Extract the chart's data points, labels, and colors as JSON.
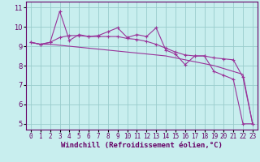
{
  "xlabel": "Windchill (Refroidissement éolien,°C)",
  "bg_color": "#c8eeee",
  "line_color": "#993399",
  "grid_color": "#99cccc",
  "axis_color": "#660066",
  "text_color": "#660066",
  "xlim": [
    -0.5,
    23.5
  ],
  "ylim": [
    4.7,
    11.3
  ],
  "yticks": [
    5,
    6,
    7,
    8,
    9,
    10,
    11
  ],
  "xticks": [
    0,
    1,
    2,
    3,
    4,
    5,
    6,
    7,
    8,
    9,
    10,
    11,
    12,
    13,
    14,
    15,
    16,
    17,
    18,
    19,
    20,
    21,
    22,
    23
  ],
  "line1_x": [
    0,
    1,
    2,
    3,
    4,
    5,
    6,
    7,
    8,
    9,
    10,
    11,
    12,
    13,
    14,
    15,
    16,
    17,
    18,
    19,
    20,
    21,
    22,
    23
  ],
  "line1_y": [
    9.2,
    9.1,
    9.2,
    10.8,
    9.3,
    9.6,
    9.5,
    9.55,
    9.75,
    9.95,
    9.45,
    9.6,
    9.5,
    9.95,
    8.8,
    8.6,
    8.05,
    8.5,
    8.5,
    7.7,
    7.5,
    7.3,
    5.0,
    5.0
  ],
  "line2_x": [
    0,
    1,
    2,
    3,
    4,
    5,
    6,
    7,
    8,
    9,
    10,
    11,
    12,
    13,
    14,
    15,
    16,
    17,
    18,
    19,
    20,
    21,
    22,
    23
  ],
  "line2_y": [
    9.2,
    9.1,
    9.1,
    9.05,
    9.0,
    8.95,
    8.9,
    8.85,
    8.8,
    8.75,
    8.7,
    8.65,
    8.6,
    8.55,
    8.5,
    8.4,
    8.3,
    8.2,
    8.1,
    8.0,
    7.85,
    7.7,
    7.55,
    5.0
  ],
  "line3_x": [
    0,
    1,
    2,
    3,
    4,
    5,
    6,
    7,
    8,
    9,
    10,
    11,
    12,
    13,
    14,
    15,
    16,
    17,
    18,
    19,
    20,
    21,
    22,
    23
  ],
  "line3_y": [
    9.2,
    9.1,
    9.2,
    9.45,
    9.55,
    9.55,
    9.5,
    9.5,
    9.5,
    9.5,
    9.4,
    9.35,
    9.25,
    9.1,
    8.9,
    8.7,
    8.55,
    8.5,
    8.5,
    8.4,
    8.35,
    8.3,
    7.4,
    5.0
  ],
  "tick_fontsize": 5.5,
  "xlabel_fontsize": 6.5,
  "marker": "+",
  "markersize": 3,
  "linewidth": 0.8
}
